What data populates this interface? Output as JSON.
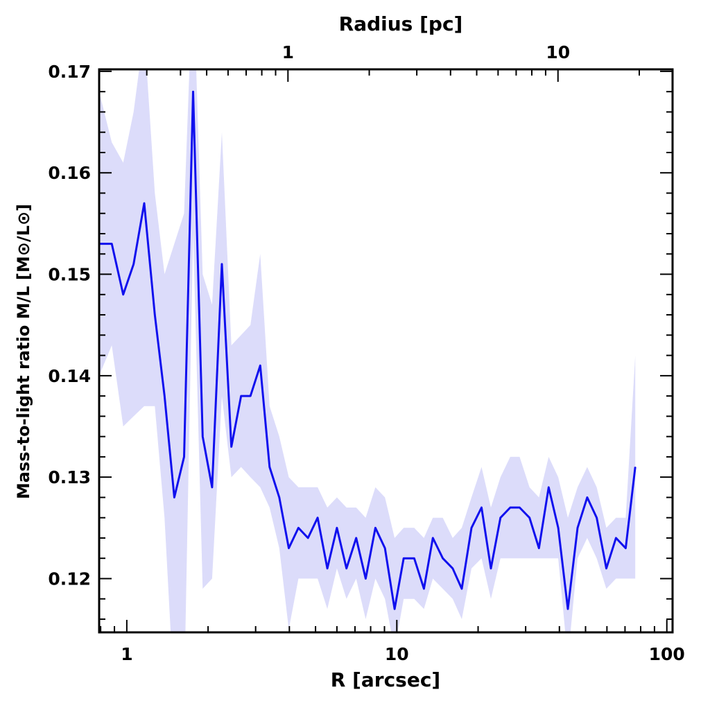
{
  "chart_data": {
    "type": "line",
    "xlabel": "R [arcsec]",
    "ylabel": "Mass-to-light ratio M/L [M⊙/L⊙]",
    "top_xlabel": "Radius [pc]",
    "xscale": "log",
    "xlim": [
      0.79,
      105
    ],
    "ylim": [
      0.1147,
      0.1702
    ],
    "top_axis_scale_pc_per_arcsec": 0.253,
    "x_tick_labels": [
      "1",
      "10",
      "100"
    ],
    "x_tick_values": [
      1,
      10,
      100
    ],
    "top_tick_labels": [
      "1",
      "10"
    ],
    "top_tick_values": [
      1,
      10
    ],
    "y_tick_labels": [
      "0.12",
      "0.13",
      "0.14",
      "0.15",
      "0.16",
      "0.17"
    ],
    "y_tick_values": [
      0.12,
      0.13,
      0.14,
      0.15,
      0.16,
      0.17
    ],
    "grid": false,
    "line_color": "#1010ee",
    "band_color": "#dcdcfa",
    "series": [
      {
        "x": [
          0.79,
          0.88,
          0.97,
          1.06,
          1.16,
          1.27,
          1.38,
          1.5,
          1.63,
          1.76,
          1.91,
          2.07,
          2.25,
          2.44,
          2.65,
          2.87,
          3.12,
          3.38,
          3.67,
          3.98,
          4.32,
          4.69,
          5.09,
          5.53,
          6.0,
          6.51,
          7.07,
          7.67,
          8.33,
          9.04,
          9.81,
          10.6,
          11.6,
          12.6,
          13.6,
          14.8,
          16.1,
          17.4,
          18.9,
          20.6,
          22.3,
          24.2,
          26.3,
          28.5,
          31.0,
          33.6,
          36.5,
          39.6,
          43.0,
          46.7,
          50.7,
          55.0,
          59.7,
          64.8,
          70.4,
          76.4
        ],
        "values": [
          0.153,
          0.153,
          0.148,
          0.151,
          0.157,
          0.146,
          0.138,
          0.128,
          0.132,
          0.168,
          0.134,
          0.129,
          0.151,
          0.133,
          0.138,
          0.138,
          0.141,
          0.131,
          0.128,
          0.123,
          0.125,
          0.124,
          0.126,
          0.121,
          0.125,
          0.121,
          0.124,
          0.12,
          0.125,
          0.123,
          0.117,
          0.122,
          0.122,
          0.119,
          0.124,
          0.122,
          0.121,
          0.119,
          0.125,
          0.127,
          0.121,
          0.126,
          0.127,
          0.127,
          0.126,
          0.123,
          0.129,
          0.125,
          0.117,
          0.125,
          0.128,
          0.126,
          0.121,
          0.124,
          0.123,
          0.131
        ],
        "upper": [
          0.168,
          0.163,
          0.161,
          0.166,
          0.174,
          0.158,
          0.15,
          0.153,
          0.156,
          0.18,
          0.15,
          0.147,
          0.164,
          0.143,
          0.144,
          0.145,
          0.152,
          0.137,
          0.134,
          0.13,
          0.129,
          0.129,
          0.129,
          0.127,
          0.128,
          0.127,
          0.127,
          0.126,
          0.129,
          0.128,
          0.124,
          0.125,
          0.125,
          0.124,
          0.126,
          0.126,
          0.124,
          0.125,
          0.128,
          0.131,
          0.127,
          0.13,
          0.132,
          0.132,
          0.129,
          0.128,
          0.132,
          0.13,
          0.126,
          0.129,
          0.131,
          0.129,
          0.125,
          0.126,
          0.126,
          0.142
        ],
        "lower": [
          0.14,
          0.143,
          0.135,
          0.136,
          0.137,
          0.137,
          0.126,
          0.108,
          0.108,
          0.154,
          0.119,
          0.12,
          0.138,
          0.13,
          0.131,
          0.13,
          0.129,
          0.127,
          0.123,
          0.115,
          0.12,
          0.12,
          0.12,
          0.117,
          0.121,
          0.118,
          0.12,
          0.116,
          0.12,
          0.118,
          0.113,
          0.118,
          0.118,
          0.117,
          0.12,
          0.119,
          0.118,
          0.116,
          0.121,
          0.122,
          0.118,
          0.122,
          0.122,
          0.122,
          0.122,
          0.122,
          0.122,
          0.122,
          0.112,
          0.122,
          0.124,
          0.122,
          0.119,
          0.12,
          0.12,
          0.12
        ]
      }
    ]
  }
}
